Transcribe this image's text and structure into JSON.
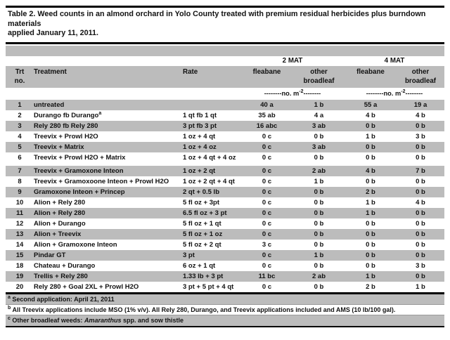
{
  "title": {
    "line1": "Table 2. Weed counts in an almond orchard in Yolo County treated with premium residual herbicides plus burndown materials",
    "line2": "applied January 11, 2011."
  },
  "header": {
    "mat2": "2 MAT",
    "mat4": "4 MAT",
    "columns": {
      "trt_line1": "Trt",
      "trt_line2": "no.",
      "treatment": "Treatment",
      "rate": "Rate",
      "fleabane": "fleabane",
      "other_line1": "other",
      "other_line2": "broadleaf"
    },
    "units": {
      "dash_left": "--------",
      "base": "no. m",
      "sup": "-2",
      "dash_right": "--------"
    }
  },
  "table": {
    "rows": [
      {
        "no": "1",
        "treatment": "untreated",
        "rate": "",
        "f2": "40 a",
        "o2": "1 b",
        "f4": "55 a",
        "o4": "19 a"
      },
      {
        "no": "2",
        "treatment": "Durango fb Durango",
        "treatment_sup": "a",
        "rate": "1 qt fb 1 qt",
        "f2": "35 ab",
        "o2": "4 a",
        "f4": "4 b",
        "o4": "4 b"
      },
      {
        "no": "3",
        "treatment": "Rely 280 fb Rely 280",
        "rate": "3 pt fb 3 pt",
        "f2": "16 abc",
        "o2": "3 ab",
        "f4": "0 b",
        "o4": "0 b"
      },
      {
        "no": "4",
        "treatment": "Treevix + Prowl H2O",
        "rate": "1 oz + 4 qt",
        "f2": "0 c",
        "o2": "0 b",
        "f4": "1 b",
        "o4": "3 b"
      },
      {
        "no": "5",
        "treatment": "Treevix + Matrix",
        "rate": "1 oz + 4 oz",
        "f2": "0 c",
        "o2": "3 ab",
        "f4": "0 b",
        "o4": "0 b"
      },
      {
        "no": "6",
        "treatment": "Treevix + Prowl H2O + Matrix",
        "rate": "1 oz + 4 qt + 4 oz",
        "f2": "0 c",
        "o2": "0 b",
        "f4": "0 b",
        "o4": "0 b",
        "gap_after": true
      },
      {
        "no": "7",
        "treatment": "Treevix + Gramoxone Inteon",
        "rate": "1 oz + 2 qt",
        "f2": "0 c",
        "o2": "2 ab",
        "f4": "4 b",
        "o4": "7 b"
      },
      {
        "no": "8",
        "treatment": "Treevix + Gramoxoone Inteon + Prowl H2O",
        "rate": "1 oz + 2 qt + 4 qt",
        "f2": "0 c",
        "o2": "1 b",
        "f4": "0 b",
        "o4": "0 b"
      },
      {
        "no": "9",
        "treatment": "Gramoxone Inteon + Princep",
        "rate": "2 qt + 0.5 lb",
        "f2": "0 c",
        "o2": "0 b",
        "f4": "2 b",
        "o4": "0 b"
      },
      {
        "no": "10",
        "treatment": "Alion + Rely 280",
        "rate": "5 fl oz + 3pt",
        "f2": "0 c",
        "o2": "0 b",
        "f4": "1 b",
        "o4": "4 b"
      },
      {
        "no": "11",
        "treatment": "Alion + Rely 280",
        "rate": "6.5 fl oz + 3 pt",
        "f2": "0 c",
        "o2": "0 b",
        "f4": "1 b",
        "o4": "0 b"
      },
      {
        "no": "12",
        "treatment": "Alion + Durango",
        "rate": "5 fl oz + 1 qt",
        "f2": "0 c",
        "o2": "0 b",
        "f4": "0 b",
        "o4": "0 b"
      },
      {
        "no": "13",
        "treatment": "Alion + Treevix",
        "rate": "5 fl oz + 1 oz",
        "f2": "0 c",
        "o2": "0 b",
        "f4": "0 b",
        "o4": "0 b"
      },
      {
        "no": "14",
        "treatment": "Alion + Gramoxone Inteon",
        "rate": "5 fl oz + 2 qt",
        "f2": "3 c",
        "o2": "0 b",
        "f4": "0 b",
        "o4": "0 b"
      },
      {
        "no": "15",
        "treatment": "Pindar GT",
        "rate": "3 pt",
        "f2": "0 c",
        "o2": "1 b",
        "f4": "0 b",
        "o4": "0 b"
      },
      {
        "no": "18",
        "treatment": "Chateau + Durango",
        "rate": "6 oz + 1 qt",
        "f2": "0 c",
        "o2": "0 b",
        "f4": "0 b",
        "o4": "3 b"
      },
      {
        "no": "19",
        "treatment": "Trellis + Rely 280",
        "rate": "1.33 lb + 3 pt",
        "f2": "11 bc",
        "o2": "2 ab",
        "f4": "1 b",
        "o4": "0 b"
      },
      {
        "no": "20",
        "treatment": "Rely 280 + Goal 2XL + Prowl H2O",
        "rate": "3 pt + 5 pt + 4 qt",
        "f2": "0 c",
        "o2": "0 b",
        "f4": "2 b",
        "o4": "1 b"
      }
    ]
  },
  "footnotes": [
    {
      "marker": "a",
      "text": "Second application: April 21, 2011"
    },
    {
      "marker": "b",
      "text": "All Treevix applications include MSO (1% v/v). All Rely 280, Durango, and Treevix applications included and AMS (10 lb/100 gal)."
    },
    {
      "marker": "c",
      "pre": "Other broadleaf weeds: ",
      "italic": "Amaranthus",
      "post": " spp. and sow thistle"
    }
  ],
  "colors": {
    "row_shade": "#bcbcbc",
    "border": "#000000",
    "text": "#121212"
  }
}
